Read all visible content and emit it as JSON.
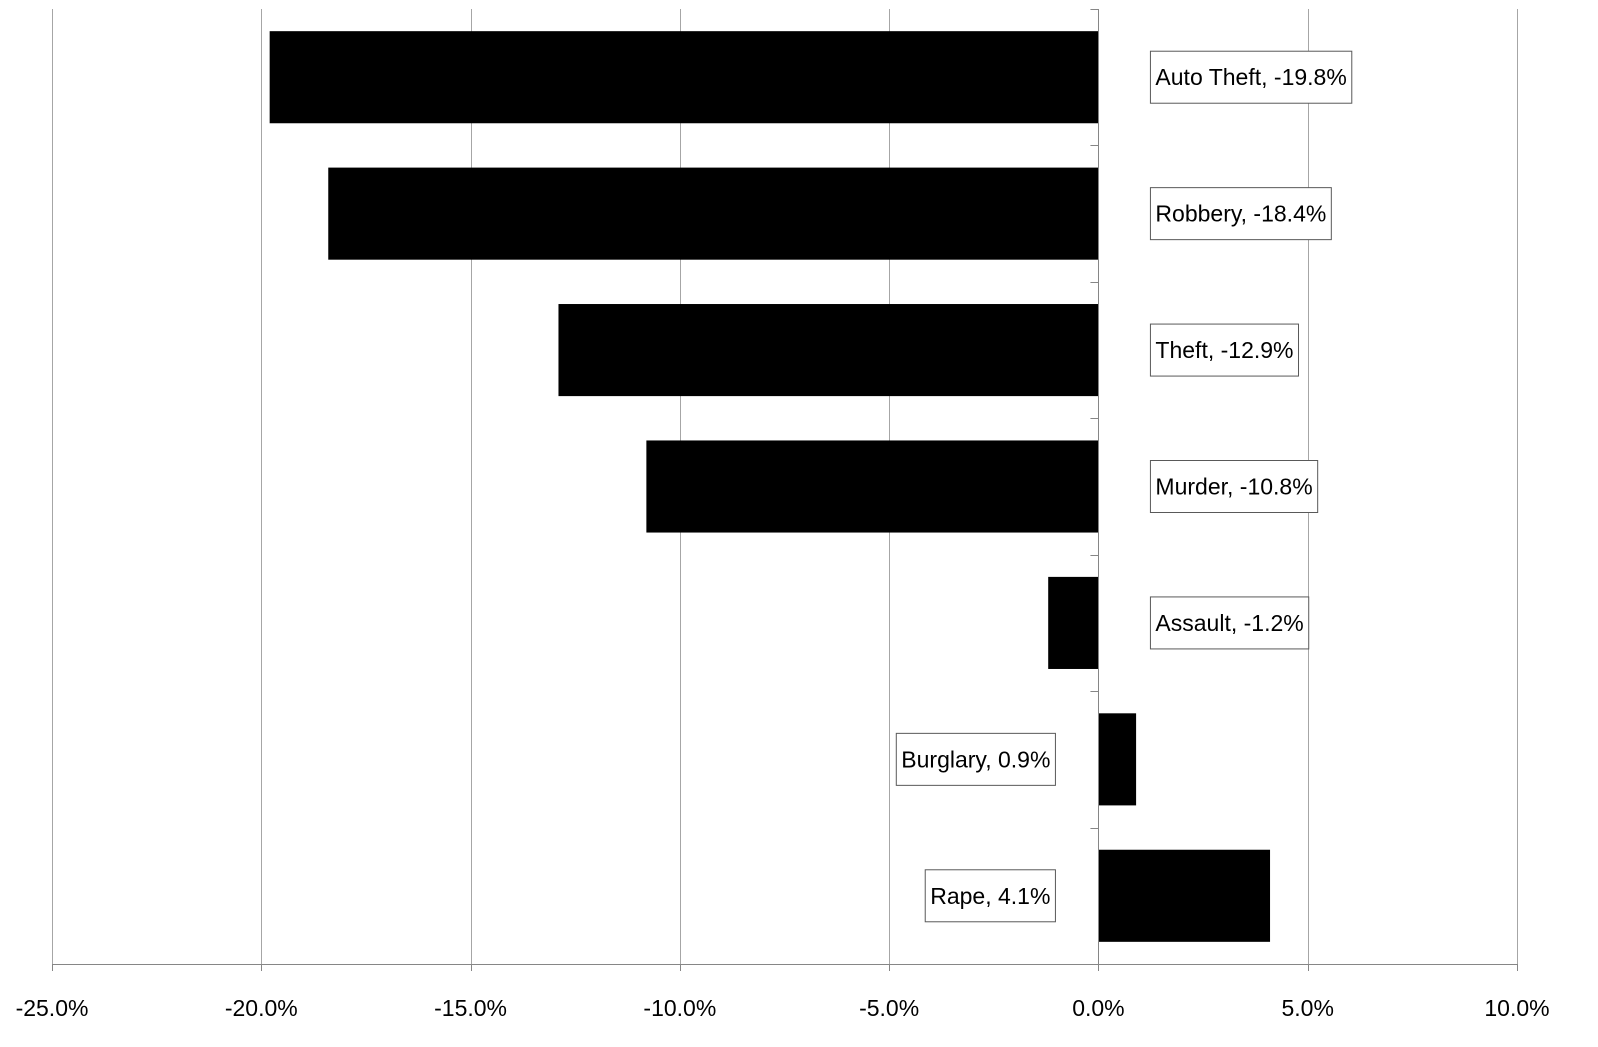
{
  "chart_data": {
    "type": "bar",
    "orientation": "horizontal",
    "title": "",
    "xlabel": "",
    "ylabel": "",
    "xlim": [
      -25.0,
      10.0
    ],
    "x_ticks": [
      -25,
      -20,
      -15,
      -10,
      -5,
      0,
      5,
      10
    ],
    "x_tick_labels": [
      "-25.0%",
      "-20.0%",
      "-15.0%",
      "-10.0%",
      "-5.0%",
      "0.0%",
      "5.0%",
      "10.0%"
    ],
    "grid": "vertical",
    "legend": "none",
    "bar_color": "#000000",
    "gridline_color": "#a6a6a6",
    "categories": [
      "Auto Theft",
      "Robbery",
      "Theft",
      "Murder",
      "Assault",
      "Burglary",
      "Rape"
    ],
    "values": [
      -19.8,
      -18.4,
      -12.9,
      -10.8,
      -1.2,
      0.9,
      4.1
    ],
    "data_labels": [
      "Auto Theft, -19.8%",
      "Robbery, -18.4%",
      "Theft, -12.9%",
      "Murder, -10.8%",
      "Assault, -1.2%",
      "Burglary, 0.9%",
      "Rape, 4.1%"
    ]
  }
}
